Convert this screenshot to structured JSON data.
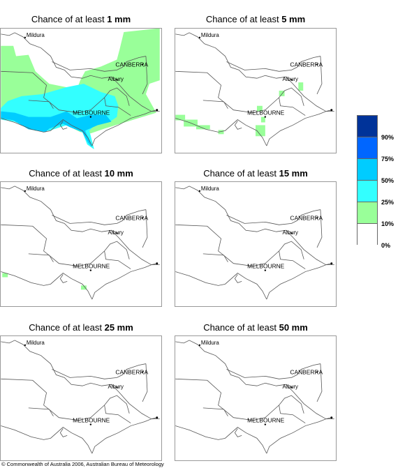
{
  "panels": [
    {
      "prefix": "Chance of at least ",
      "amount": "1 mm"
    },
    {
      "prefix": "Chance of at least ",
      "amount": "5 mm"
    },
    {
      "prefix": "Chance of at least ",
      "amount": "10 mm"
    },
    {
      "prefix": "Chance of at least ",
      "amount": "15 mm"
    },
    {
      "prefix": "Chance of at least ",
      "amount": "25 mm"
    },
    {
      "prefix": "Chance of at least ",
      "amount": "50 mm"
    }
  ],
  "places": {
    "mildura": "Mildura",
    "canberra": "CANBERRA",
    "albury": "Albury",
    "melbourne": "MELBOURNE"
  },
  "legend": {
    "colors": [
      "#003399",
      "#0066ff",
      "#00ccff",
      "#33ffff",
      "#99ff99",
      "#ffffff"
    ],
    "ticks": [
      "90%",
      "75%",
      "50%",
      "25%",
      "10%",
      "0%"
    ]
  },
  "copyright": "© Commonwealth of Australia 2006, Australian Bureau of Meteorology"
}
